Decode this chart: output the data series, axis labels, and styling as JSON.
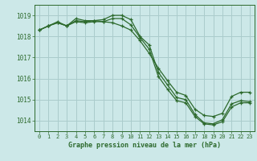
{
  "background_color": "#cce8e8",
  "grid_color": "#aacccc",
  "line_color": "#2d6a2d",
  "marker_color": "#2d6a2d",
  "xlabel": "Graphe pression niveau de la mer (hPa)",
  "ylim": [
    1013.5,
    1019.5
  ],
  "xlim": [
    -0.5,
    23.5
  ],
  "yticks": [
    1014,
    1015,
    1016,
    1017,
    1018,
    1019
  ],
  "xticks": [
    0,
    1,
    2,
    3,
    4,
    5,
    6,
    7,
    8,
    9,
    10,
    11,
    12,
    13,
    14,
    15,
    16,
    17,
    18,
    19,
    20,
    21,
    22,
    23
  ],
  "line1": [
    1018.3,
    1018.5,
    1018.7,
    1018.5,
    1018.85,
    1018.75,
    1018.75,
    1018.8,
    1019.0,
    1019.0,
    1018.8,
    1018.0,
    1017.6,
    1016.3,
    1015.7,
    1015.1,
    1015.0,
    1014.3,
    1013.9,
    1013.85,
    1014.05,
    1014.8,
    1014.95,
    1014.9
  ],
  "line2": [
    1018.3,
    1018.5,
    1018.65,
    1018.5,
    1018.7,
    1018.65,
    1018.7,
    1018.7,
    1018.85,
    1018.85,
    1018.55,
    1017.95,
    1017.4,
    1016.1,
    1015.5,
    1014.95,
    1014.85,
    1014.2,
    1013.85,
    1013.8,
    1013.95,
    1014.65,
    1014.85,
    1014.85
  ],
  "line3": [
    1018.3,
    1018.5,
    1018.65,
    1018.5,
    1018.75,
    1018.7,
    1018.75,
    1018.7,
    1018.65,
    1018.5,
    1018.3,
    1017.8,
    1017.2,
    1016.5,
    1015.9,
    1015.35,
    1015.2,
    1014.55,
    1014.25,
    1014.2,
    1014.35,
    1015.15,
    1015.35,
    1015.35
  ]
}
